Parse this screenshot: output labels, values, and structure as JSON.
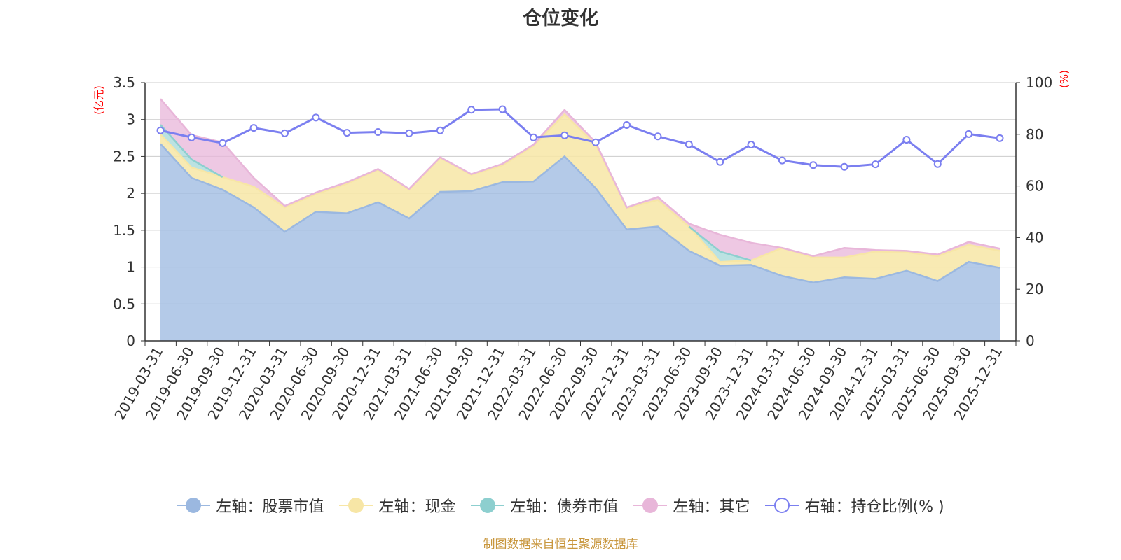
{
  "chart_data": {
    "type": "area",
    "title": "仓位变化",
    "left_axis_unit": "(亿元)",
    "right_axis_unit": "(%)",
    "left_ylim": [
      0,
      3.5
    ],
    "right_ylim": [
      0,
      100
    ],
    "left_ticks": [
      "0",
      "0.5",
      "1",
      "1.5",
      "2",
      "2.5",
      "3",
      "3.5"
    ],
    "right_ticks": [
      "0",
      "20",
      "40",
      "60",
      "80",
      "100"
    ],
    "categories": [
      "2019-03-31",
      "2019-06-30",
      "2019-09-30",
      "2019-12-31",
      "2020-03-31",
      "2020-06-30",
      "2020-09-30",
      "2020-12-31",
      "2021-03-31",
      "2021-06-30",
      "2021-09-30",
      "2021-12-31",
      "2022-03-31",
      "2022-06-30",
      "2022-09-30",
      "2022-12-31",
      "2023-03-31",
      "2023-06-30",
      "2023-09-30",
      "2023-12-31",
      "2024-03-31",
      "2024-06-30",
      "2024-09-30",
      "2024-12-31",
      "2025-03-31",
      "2025-06-30",
      "2025-09-30",
      "2025-12-31"
    ],
    "series": [
      {
        "name": "左轴：股票市值",
        "axis": "left",
        "color": "#9bb8e0",
        "values": [
          2.67,
          2.21,
          2.05,
          1.81,
          1.48,
          1.75,
          1.73,
          1.88,
          1.66,
          2.02,
          2.03,
          2.15,
          2.16,
          2.5,
          2.07,
          1.51,
          1.55,
          1.22,
          1.02,
          1.03,
          0.88,
          0.79,
          0.86,
          0.84,
          0.95,
          0.81,
          1.07,
          0.99
        ]
      },
      {
        "name": "左轴：现金",
        "axis": "left",
        "color": "#f7e6a6",
        "values": [
          0.13,
          0.14,
          0.17,
          0.28,
          0.33,
          0.24,
          0.4,
          0.44,
          0.39,
          0.46,
          0.22,
          0.23,
          0.48,
          0.57,
          0.59,
          0.29,
          0.36,
          0.33,
          0.05,
          0.06,
          0.38,
          0.34,
          0.27,
          0.37,
          0.25,
          0.34,
          0.23,
          0.23
        ]
      },
      {
        "name": "左轴：债券市值",
        "axis": "left",
        "color": "#8dcfcf",
        "values": [
          0.13,
          0.11,
          0.0,
          0.0,
          0.0,
          0.0,
          0.0,
          0.0,
          0.0,
          0.0,
          0.0,
          0.0,
          0.0,
          0.0,
          0.0,
          0.0,
          0.0,
          0.0,
          0.14,
          0.0,
          0.0,
          0.0,
          0.0,
          0.0,
          0.0,
          0.0,
          0.0,
          0.0
        ]
      },
      {
        "name": "左轴：其它",
        "axis": "left",
        "color": "#e8b6d9",
        "values": [
          0.35,
          0.33,
          0.47,
          0.12,
          0.02,
          0.02,
          0.02,
          0.01,
          0.01,
          0.01,
          0.01,
          0.02,
          0.02,
          0.06,
          0.03,
          0.01,
          0.04,
          0.04,
          0.23,
          0.24,
          0.0,
          0.02,
          0.13,
          0.02,
          0.02,
          0.02,
          0.04,
          0.03
        ]
      },
      {
        "name": "右轴：持仓比例(% )",
        "axis": "right",
        "color": "#7b7ff0",
        "values": [
          81.5,
          78.8,
          76.6,
          82.5,
          80.4,
          86.5,
          80.6,
          80.9,
          80.4,
          81.5,
          89.5,
          89.7,
          78.8,
          79.6,
          76.9,
          83.6,
          79.2,
          76.1,
          69.3,
          76.0,
          69.9,
          68.1,
          67.4,
          68.4,
          77.9,
          68.5,
          80.1,
          78.5
        ]
      }
    ]
  },
  "source_note": "制图数据来自恒生聚源数据库"
}
